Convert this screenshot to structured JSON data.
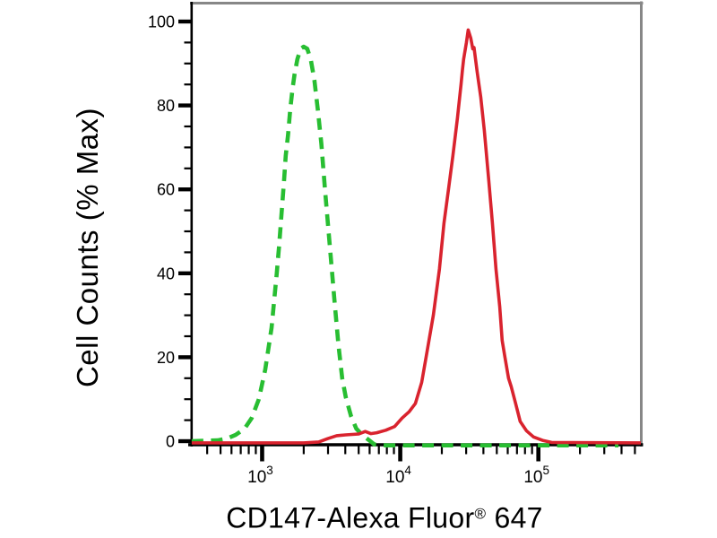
{
  "page": {
    "background": "#ffffff"
  },
  "chart_data": {
    "type": "line",
    "subtype": "flow-cytometry-histogram-overlay",
    "xlabel": "CD147-Alexa Fluor® 647",
    "ylabel": "Cell Counts (% Max)",
    "x_scale": "log10",
    "xlim": [
      305,
      560000
    ],
    "ylim": [
      0,
      100
    ],
    "grid": false,
    "legend_position": "none",
    "axis_color": "#000000",
    "frame_color": "#878787",
    "x_tick_label_base": "10",
    "x_major_tick_exponents": [
      3,
      4,
      5
    ],
    "y_major_ticks": [
      0,
      20,
      40,
      60,
      80,
      100
    ],
    "y_minor_step": 5,
    "series": [
      {
        "name": "green-dashed",
        "color": "#28be32",
        "style": "dashed",
        "peak_x": 2000,
        "peak_y": 94,
        "points": [
          [
            309,
            0
          ],
          [
            476,
            0.2
          ],
          [
            553,
            0.6
          ],
          [
            643,
            1.5
          ],
          [
            746,
            3
          ],
          [
            840,
            5.5
          ],
          [
            947,
            10
          ],
          [
            1052,
            17
          ],
          [
            1170,
            27
          ],
          [
            1277,
            40
          ],
          [
            1330,
            47
          ],
          [
            1374,
            53
          ],
          [
            1440,
            62
          ],
          [
            1482,
            68
          ],
          [
            1540,
            73
          ],
          [
            1596,
            79
          ],
          [
            1660,
            84
          ],
          [
            1719,
            87.5
          ],
          [
            1800,
            91
          ],
          [
            1900,
            93.5
          ],
          [
            2000,
            94
          ],
          [
            2120,
            93.5
          ],
          [
            2250,
            91
          ],
          [
            2390,
            86
          ],
          [
            2530,
            79
          ],
          [
            2680,
            71
          ],
          [
            2850,
            60
          ],
          [
            3120,
            45
          ],
          [
            3350,
            33
          ],
          [
            3570,
            23
          ],
          [
            3800,
            15
          ],
          [
            4030,
            10.5
          ],
          [
            4400,
            6
          ],
          [
            4800,
            3
          ],
          [
            5300,
            1.5
          ],
          [
            5900,
            0.3
          ],
          [
            6500,
            -0.8
          ],
          [
            8000,
            -1
          ],
          [
            100000,
            -1
          ],
          [
            380000,
            -1
          ]
        ]
      },
      {
        "name": "red-solid",
        "color": "#d9232e",
        "style": "solid",
        "peak_x": 31050,
        "peak_y": 98,
        "points": [
          [
            309,
            -0.4
          ],
          [
            2000,
            -0.4
          ],
          [
            2570,
            -0.2
          ],
          [
            2980,
            0.6
          ],
          [
            3460,
            1.3
          ],
          [
            4020,
            1.5
          ],
          [
            5010,
            1.7
          ],
          [
            5580,
            2.3
          ],
          [
            6120,
            1.8
          ],
          [
            6760,
            2
          ],
          [
            7850,
            2.6
          ],
          [
            9120,
            3.5
          ],
          [
            10300,
            5.5
          ],
          [
            11600,
            7
          ],
          [
            12880,
            9
          ],
          [
            14290,
            14
          ],
          [
            15380,
            20
          ],
          [
            17350,
            30
          ],
          [
            19230,
            41
          ],
          [
            20750,
            52
          ],
          [
            22340,
            60
          ],
          [
            24050,
            68
          ],
          [
            25940,
            77
          ],
          [
            27540,
            85
          ],
          [
            28200,
            88.5
          ],
          [
            28780,
            91
          ],
          [
            30130,
            95
          ],
          [
            31050,
            98
          ],
          [
            32440,
            96
          ],
          [
            33500,
            93.5
          ],
          [
            34200,
            93.8
          ],
          [
            36060,
            88
          ],
          [
            38280,
            82
          ],
          [
            40640,
            74
          ],
          [
            43750,
            62
          ],
          [
            46450,
            52
          ],
          [
            49320,
            41
          ],
          [
            52500,
            32
          ],
          [
            54700,
            24
          ],
          [
            57280,
            20
          ],
          [
            60810,
            15
          ],
          [
            63560,
            13
          ],
          [
            68450,
            9
          ],
          [
            73800,
            4.7
          ],
          [
            81850,
            2.5
          ],
          [
            92260,
            1
          ],
          [
            107200,
            0.2
          ],
          [
            124500,
            -0.3
          ],
          [
            552000,
            -0.4
          ]
        ]
      }
    ]
  }
}
